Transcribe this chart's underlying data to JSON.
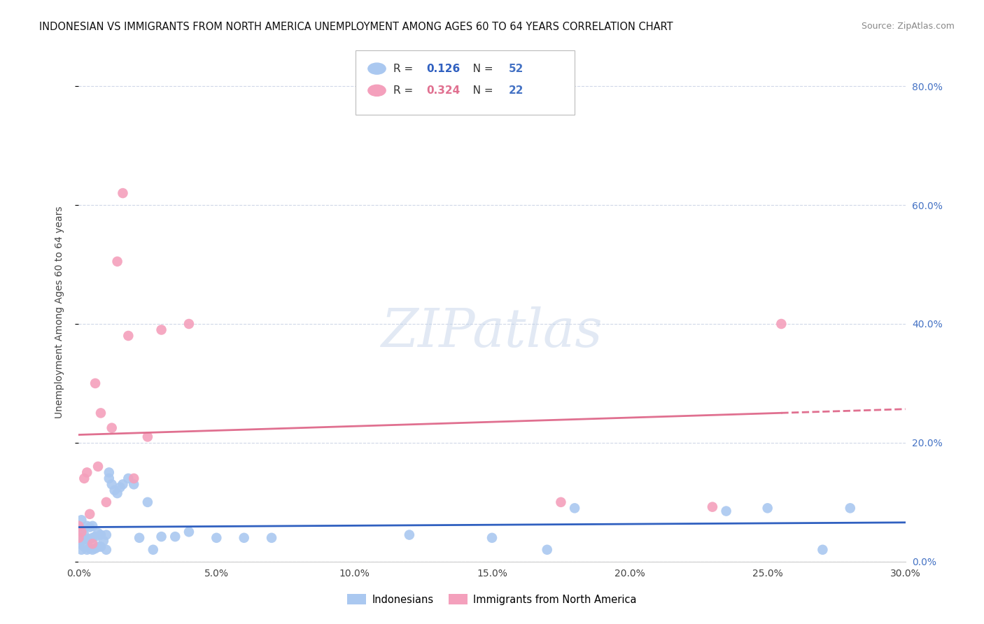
{
  "title": "INDONESIAN VS IMMIGRANTS FROM NORTH AMERICA UNEMPLOYMENT AMONG AGES 60 TO 64 YEARS CORRELATION CHART",
  "source": "Source: ZipAtlas.com",
  "ylabel": "Unemployment Among Ages 60 to 64 years",
  "xlim": [
    0.0,
    0.3
  ],
  "ylim": [
    0.0,
    0.84
  ],
  "yticks": [
    0.0,
    0.2,
    0.4,
    0.6,
    0.8
  ],
  "xticks": [
    0.0,
    0.05,
    0.1,
    0.15,
    0.2,
    0.25,
    0.3
  ],
  "background_color": "#ffffff",
  "watermark_text": "ZIPatlas",
  "indonesian_color": "#aac8f0",
  "immigrant_color": "#f4a0bc",
  "trend_indonesian_color": "#3060c0",
  "trend_immigrant_color": "#e07090",
  "indonesian_R": "0.126",
  "indonesian_N": "52",
  "immigrant_R": "0.324",
  "immigrant_N": "22",
  "legend_label_indonesian": "Indonesians",
  "legend_label_immigrant": "Immigrants from North America",
  "grid_color": "#d0d8e8",
  "right_yaxis_color": "#4472c4",
  "indonesian_x": [
    0.0,
    0.0,
    0.001,
    0.001,
    0.001,
    0.001,
    0.002,
    0.002,
    0.003,
    0.003,
    0.003,
    0.004,
    0.004,
    0.004,
    0.005,
    0.005,
    0.005,
    0.006,
    0.006,
    0.007,
    0.007,
    0.008,
    0.008,
    0.009,
    0.01,
    0.01,
    0.011,
    0.011,
    0.012,
    0.013,
    0.014,
    0.015,
    0.016,
    0.018,
    0.02,
    0.022,
    0.025,
    0.027,
    0.03,
    0.035,
    0.04,
    0.05,
    0.06,
    0.07,
    0.12,
    0.15,
    0.17,
    0.18,
    0.235,
    0.25,
    0.27,
    0.28
  ],
  "indonesian_y": [
    0.03,
    0.055,
    0.02,
    0.035,
    0.055,
    0.07,
    0.025,
    0.045,
    0.02,
    0.038,
    0.06,
    0.022,
    0.038,
    0.058,
    0.02,
    0.04,
    0.06,
    0.022,
    0.042,
    0.025,
    0.048,
    0.025,
    0.045,
    0.035,
    0.02,
    0.045,
    0.15,
    0.14,
    0.13,
    0.12,
    0.115,
    0.125,
    0.13,
    0.14,
    0.13,
    0.04,
    0.1,
    0.02,
    0.042,
    0.042,
    0.05,
    0.04,
    0.04,
    0.04,
    0.045,
    0.04,
    0.02,
    0.09,
    0.085,
    0.09,
    0.02,
    0.09
  ],
  "immigrant_x": [
    0.0,
    0.001,
    0.002,
    0.003,
    0.004,
    0.005,
    0.006,
    0.007,
    0.008,
    0.01,
    0.012,
    0.014,
    0.016,
    0.018,
    0.02,
    0.025,
    0.03,
    0.04,
    0.175,
    0.23,
    0.255,
    0.0
  ],
  "immigrant_y": [
    0.04,
    0.05,
    0.14,
    0.15,
    0.08,
    0.03,
    0.3,
    0.16,
    0.25,
    0.1,
    0.225,
    0.505,
    0.62,
    0.38,
    0.14,
    0.21,
    0.39,
    0.4,
    0.1,
    0.092,
    0.4,
    0.06
  ]
}
